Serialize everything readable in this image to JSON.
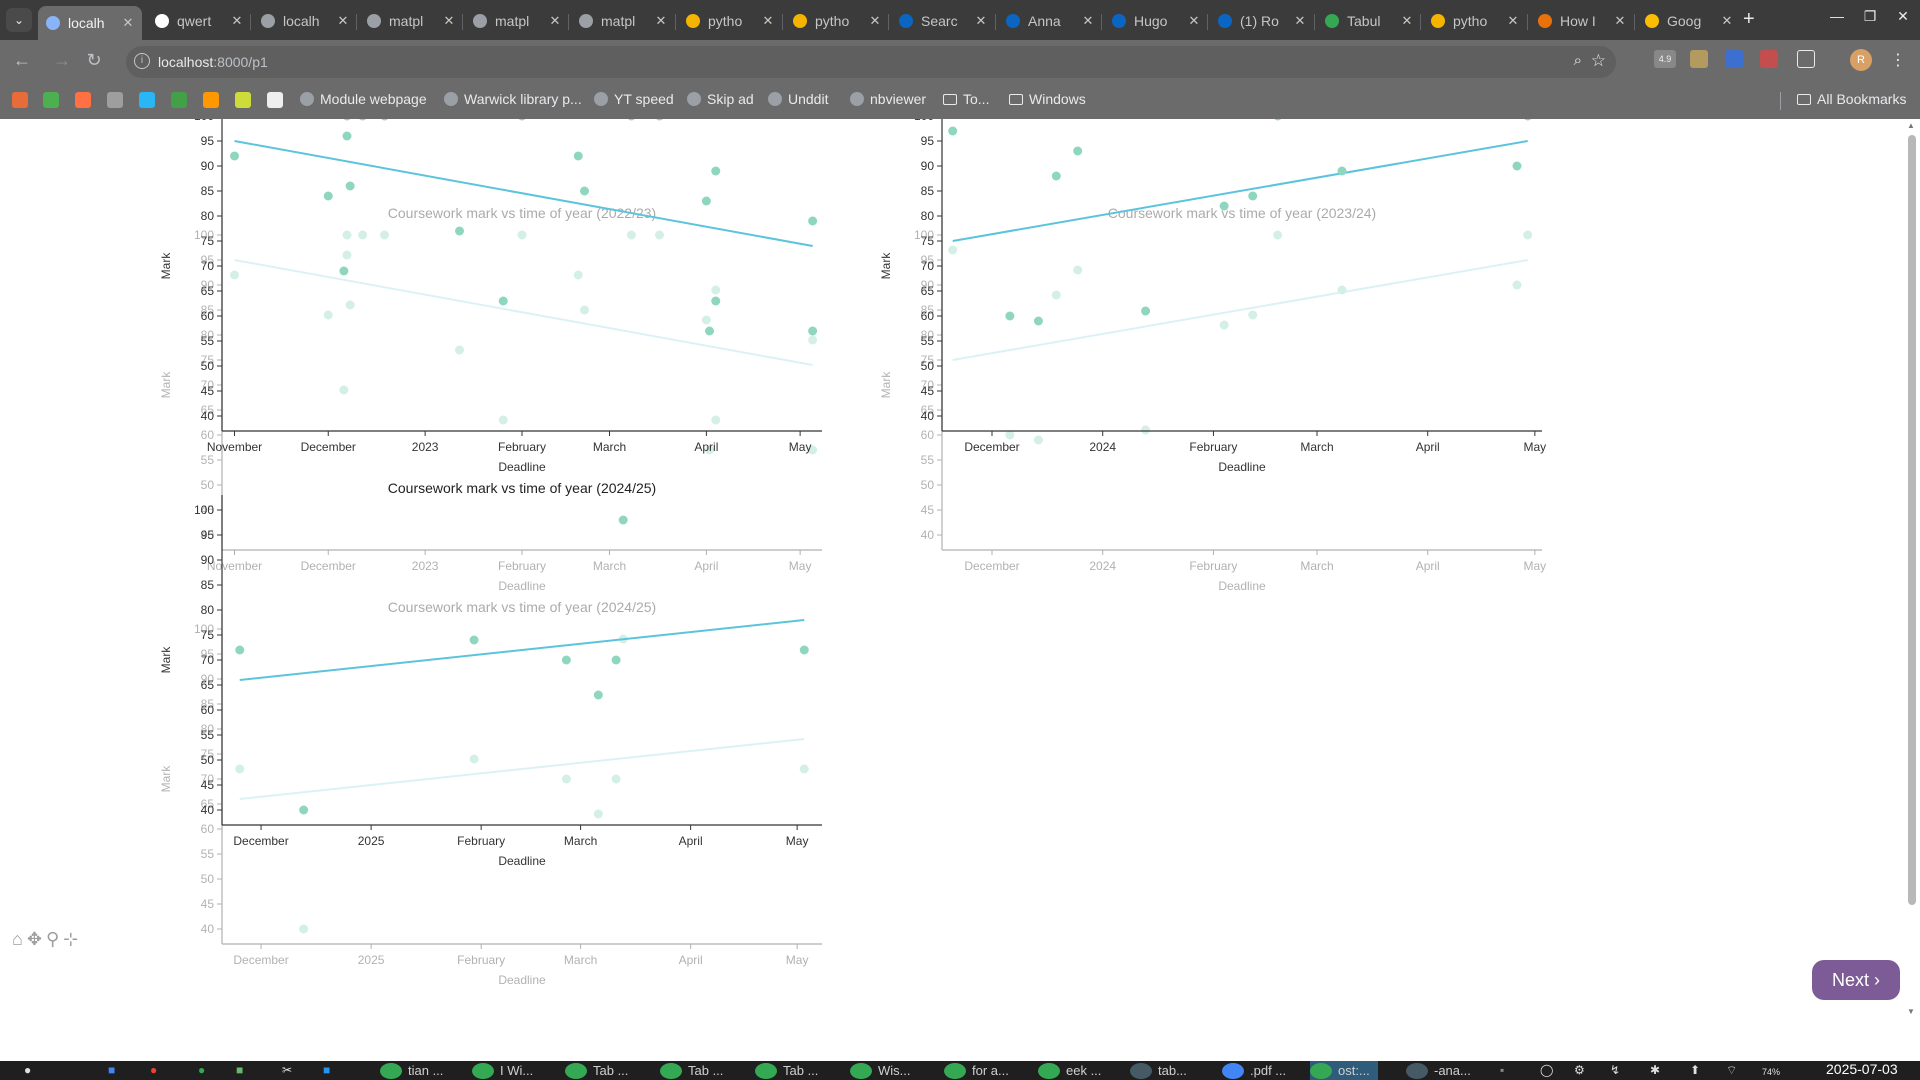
{
  "browser": {
    "tabs": [
      {
        "title": "localh",
        "favicon_color": "#8ab4f8",
        "active": true
      },
      {
        "title": "qwert",
        "favicon_color": "#ffffff",
        "active": false
      },
      {
        "title": "localh",
        "favicon_color": "#9aa0a6",
        "active": false
      },
      {
        "title": "matpl",
        "favicon_color": "#9aa0a6",
        "active": false
      },
      {
        "title": "matpl",
        "favicon_color": "#9aa0a6",
        "active": false
      },
      {
        "title": "matpl",
        "favicon_color": "#9aa0a6",
        "active": false
      },
      {
        "title": "pytho",
        "favicon_color": "#f4b400",
        "active": false
      },
      {
        "title": "pytho",
        "favicon_color": "#f4b400",
        "active": false
      },
      {
        "title": "Searc",
        "favicon_color": "#0a66c2",
        "active": false
      },
      {
        "title": "Anna",
        "favicon_color": "#0a66c2",
        "active": false
      },
      {
        "title": "Hugo",
        "favicon_color": "#0a66c2",
        "active": false
      },
      {
        "title": "(1) Ro",
        "favicon_color": "#0a66c2",
        "active": false
      },
      {
        "title": "Tabul",
        "favicon_color": "#34a853",
        "active": false
      },
      {
        "title": "pytho",
        "favicon_color": "#f4b400",
        "active": false
      },
      {
        "title": "How I",
        "favicon_color": "#e8710a",
        "active": false
      },
      {
        "title": "Goog",
        "favicon_color": "#fbbc04",
        "active": false
      }
    ],
    "new_tab_symbol": "+",
    "url_host": "localhost",
    "url_path": ":8000/p1",
    "extension_badge": "4.9",
    "profile_initial": "R",
    "bookmarks": [
      {
        "label": "Module webpage",
        "type": "link"
      },
      {
        "label": "Warwick library p...",
        "type": "link"
      },
      {
        "label": "YT speed",
        "type": "link"
      },
      {
        "label": "Skip ad",
        "type": "link"
      },
      {
        "label": "Unddit",
        "type": "link"
      },
      {
        "label": "nbviewer",
        "type": "link"
      },
      {
        "label": "To...",
        "type": "folder"
      },
      {
        "label": "Windows",
        "type": "folder"
      }
    ],
    "all_bookmarks_label": "All Bookmarks"
  },
  "page": {
    "next_button_label": "Next ›",
    "toolbar_icons": [
      "home-icon",
      "pan-icon",
      "zoom-icon",
      "subplots-icon"
    ]
  },
  "colors": {
    "point": "#8fd6c0",
    "trend_primary": "#5bc4dc",
    "trend_secondary": "#a6dcea",
    "axis": "#333333",
    "next_button": "#7d5b97"
  },
  "chart_data": [
    {
      "id": "2022-23",
      "type": "scatter",
      "title": "Coursework mark vs time of year (2022/23)",
      "xlabel": "Deadline",
      "ylabel": "Mark",
      "x_ticks": [
        "November",
        "December",
        "2023",
        "February",
        "March",
        "April",
        "May"
      ],
      "ylim": [
        37,
        103
      ],
      "y_ticks": [
        40,
        45,
        50,
        55,
        60,
        65,
        70,
        75,
        80,
        85,
        90,
        95,
        100
      ],
      "x_domain": [
        "2022-10-28",
        "2023-05-08"
      ],
      "points": [
        {
          "x": "2022-11-01",
          "y": 92
        },
        {
          "x": "2022-12-01",
          "y": 84
        },
        {
          "x": "2022-12-06",
          "y": 69
        },
        {
          "x": "2022-12-07",
          "y": 100
        },
        {
          "x": "2022-12-07",
          "y": 96
        },
        {
          "x": "2022-12-08",
          "y": 86
        },
        {
          "x": "2022-12-12",
          "y": 100
        },
        {
          "x": "2022-12-19",
          "y": 100
        },
        {
          "x": "2023-01-12",
          "y": 77
        },
        {
          "x": "2023-01-26",
          "y": 63
        },
        {
          "x": "2023-02-01",
          "y": 100
        },
        {
          "x": "2023-02-19",
          "y": 92
        },
        {
          "x": "2023-02-21",
          "y": 85
        },
        {
          "x": "2023-03-08",
          "y": 100
        },
        {
          "x": "2023-03-17",
          "y": 100
        },
        {
          "x": "2023-04-01",
          "y": 83
        },
        {
          "x": "2023-04-02",
          "y": 57
        },
        {
          "x": "2023-04-04",
          "y": 89
        },
        {
          "x": "2023-04-04",
          "y": 63
        },
        {
          "x": "2023-05-05",
          "y": 79
        },
        {
          "x": "2023-05-05",
          "y": 57
        }
      ],
      "trend": {
        "x": [
          "2022-11-01",
          "2023-05-05"
        ],
        "y": [
          95,
          74
        ]
      }
    },
    {
      "id": "2023-24",
      "type": "scatter",
      "title": "Coursework mark vs time of year (2023/24)",
      "xlabel": "Deadline",
      "ylabel": "Mark",
      "x_ticks": [
        "December",
        "2024",
        "February",
        "March",
        "April",
        "May"
      ],
      "ylim": [
        37,
        103
      ],
      "y_ticks": [
        40,
        45,
        50,
        55,
        60,
        65,
        70,
        75,
        80,
        85,
        90,
        95,
        100
      ],
      "x_domain": [
        "2023-11-17",
        "2024-05-03"
      ],
      "points": [
        {
          "x": "2023-11-20",
          "y": 97
        },
        {
          "x": "2023-12-06",
          "y": 60
        },
        {
          "x": "2023-12-14",
          "y": 59
        },
        {
          "x": "2023-12-19",
          "y": 88
        },
        {
          "x": "2023-12-25",
          "y": 93
        },
        {
          "x": "2024-01-13",
          "y": 61
        },
        {
          "x": "2024-02-04",
          "y": 82
        },
        {
          "x": "2024-02-12",
          "y": 84
        },
        {
          "x": "2024-02-19",
          "y": 100
        },
        {
          "x": "2024-03-08",
          "y": 89
        },
        {
          "x": "2024-04-26",
          "y": 90
        },
        {
          "x": "2024-04-29",
          "y": 100
        }
      ],
      "trend": {
        "x": [
          "2023-11-20",
          "2024-04-29"
        ],
        "y": [
          75,
          95
        ]
      }
    },
    {
      "id": "2024-25",
      "type": "scatter",
      "title": "Coursework mark vs time of year (2024/25)",
      "xlabel": "Deadline",
      "ylabel": "Mark",
      "x_ticks": [
        "December",
        "2025",
        "February",
        "March",
        "April",
        "May"
      ],
      "ylim": [
        37,
        103
      ],
      "y_ticks": [
        40,
        45,
        50,
        55,
        60,
        65,
        70,
        75,
        80,
        85,
        90,
        95,
        100
      ],
      "x_domain": [
        "2024-11-20",
        "2025-05-08"
      ],
      "points": [
        {
          "x": "2024-11-25",
          "y": 72
        },
        {
          "x": "2024-12-13",
          "y": 40
        },
        {
          "x": "2025-01-30",
          "y": 74
        },
        {
          "x": "2025-02-25",
          "y": 70
        },
        {
          "x": "2025-03-06",
          "y": 63
        },
        {
          "x": "2025-03-11",
          "y": 70
        },
        {
          "x": "2025-03-13",
          "y": 98
        },
        {
          "x": "2025-05-03",
          "y": 72
        }
      ],
      "trend": {
        "x": [
          "2024-11-25",
          "2025-05-03"
        ],
        "y": [
          66,
          78
        ]
      }
    }
  ],
  "taskbar": {
    "apps": [
      {
        "label": "tian ...",
        "color": "#34a853"
      },
      {
        "label": "I Wi...",
        "color": "#34a853"
      },
      {
        "label": "Tab ...",
        "color": "#34a853"
      },
      {
        "label": "Tab ...",
        "color": "#34a853"
      },
      {
        "label": "Tab ...",
        "color": "#34a853"
      },
      {
        "label": "Wis...",
        "color": "#34a853"
      },
      {
        "label": "for a...",
        "color": "#34a853"
      },
      {
        "label": "eek ...",
        "color": "#34a853"
      },
      {
        "label": "tab...",
        "color": "#455a64"
      },
      {
        "label": ".pdf ...",
        "color": "#4285f4"
      },
      {
        "label": "ost:...",
        "color": "#34a853"
      },
      {
        "label": "-ana...",
        "color": "#455a64"
      }
    ],
    "battery": "74%",
    "date": "2025-07-03"
  }
}
